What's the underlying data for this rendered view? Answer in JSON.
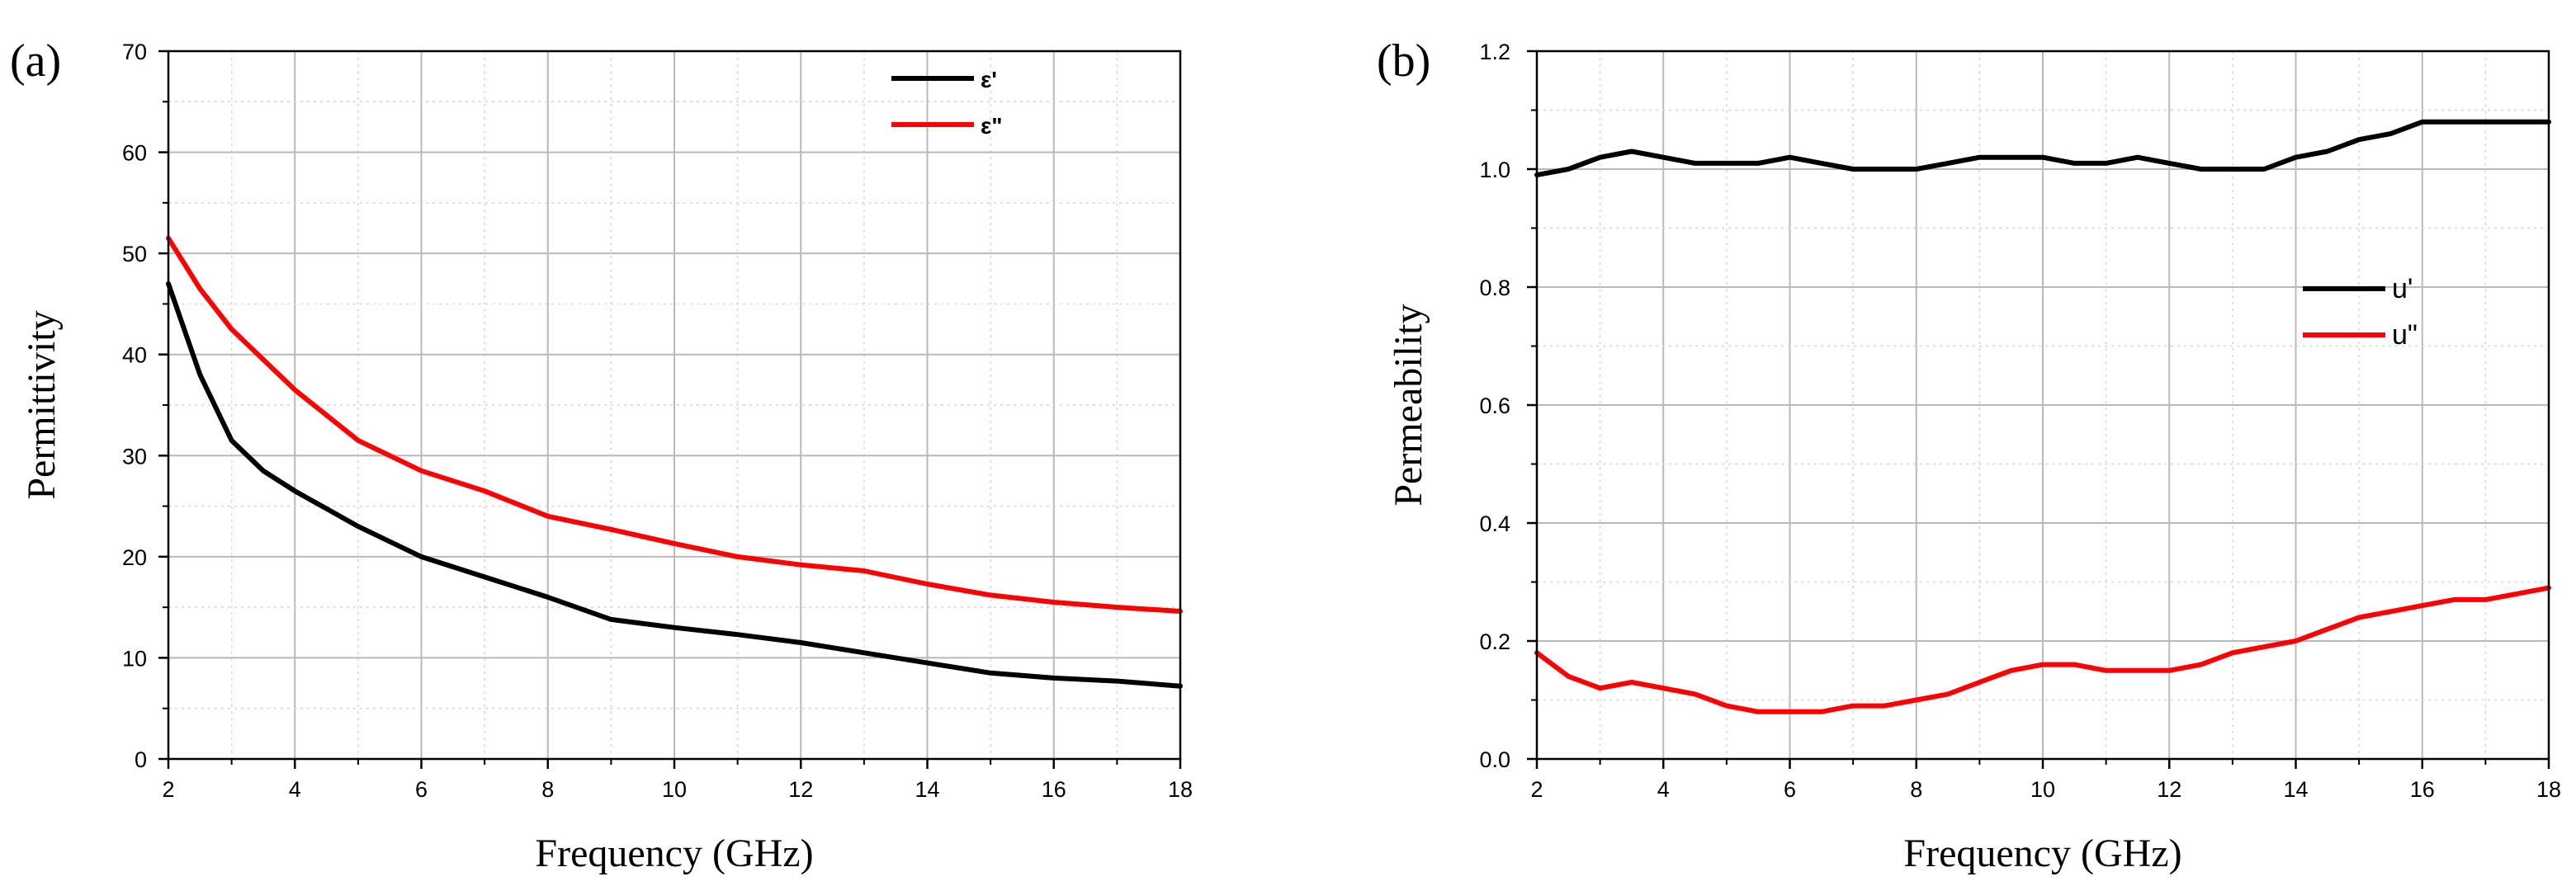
{
  "chart_data": [
    {
      "type": "line",
      "panel_label": "(a)",
      "xlabel": "Frequency (GHz)",
      "ylabel": "Permittivity",
      "xlim": [
        2,
        18
      ],
      "ylim": [
        0,
        70
      ],
      "xticks": [
        "2",
        "4",
        "6",
        "8",
        "10",
        "12",
        "14",
        "16",
        "18"
      ],
      "yticks": [
        "0",
        "10",
        "20",
        "30",
        "40",
        "50",
        "60",
        "70"
      ],
      "grid": true,
      "legend_position": "top-right",
      "series": [
        {
          "name": "ε'",
          "color": "#000000",
          "x": [
            2,
            2.5,
            3,
            3.5,
            4,
            5,
            6,
            7,
            8,
            9,
            10,
            11,
            12,
            13,
            14,
            15,
            16,
            17,
            18
          ],
          "y": [
            47,
            38,
            31.5,
            28.5,
            26.5,
            23,
            20,
            18,
            16,
            13.8,
            13,
            12.3,
            11.5,
            10.5,
            9.5,
            8.5,
            8,
            7.7,
            7.2
          ]
        },
        {
          "name": "ε\"",
          "color": "#ff0000",
          "x": [
            2,
            2.5,
            3,
            3.5,
            4,
            5,
            6,
            7,
            8,
            9,
            10,
            11,
            12,
            13,
            14,
            15,
            16,
            17,
            18
          ],
          "y": [
            51.5,
            46.5,
            42.5,
            39.5,
            36.5,
            31.5,
            28.5,
            26.5,
            24,
            22.7,
            21.3,
            20,
            19.2,
            18.6,
            17.3,
            16.2,
            15.5,
            15,
            14.6
          ]
        }
      ]
    },
    {
      "type": "line",
      "panel_label": "(b)",
      "xlabel": "Frequency (GHz)",
      "ylabel": "Permeability",
      "xlim": [
        2,
        18
      ],
      "ylim": [
        0,
        1.2
      ],
      "xticks": [
        "2",
        "4",
        "6",
        "8",
        "10",
        "12",
        "14",
        "16",
        "18"
      ],
      "yticks": [
        "0.0",
        "0.2",
        "0.4",
        "0.6",
        "0.8",
        "1.0",
        "1.2"
      ],
      "grid": true,
      "legend_position": "center-right",
      "series": [
        {
          "name": "u'",
          "color": "#000000",
          "x": [
            2,
            2.5,
            3,
            3.5,
            4,
            4.5,
            5,
            5.5,
            6,
            6.5,
            7,
            7.5,
            8,
            8.5,
            9,
            9.5,
            10,
            10.5,
            11,
            11.5,
            12,
            12.5,
            13,
            13.5,
            14,
            14.5,
            15,
            15.5,
            16,
            16.5,
            17,
            17.5,
            18
          ],
          "y": [
            0.99,
            1.0,
            1.02,
            1.03,
            1.02,
            1.01,
            1.01,
            1.01,
            1.02,
            1.01,
            1.0,
            1.0,
            1.0,
            1.01,
            1.02,
            1.02,
            1.02,
            1.01,
            1.01,
            1.02,
            1.01,
            1.0,
            1.0,
            1.0,
            1.02,
            1.03,
            1.05,
            1.06,
            1.08,
            1.08,
            1.08,
            1.08,
            1.08
          ]
        },
        {
          "name": "u\"",
          "color": "#ff0000",
          "x": [
            2,
            2.5,
            3,
            3.5,
            4,
            4.5,
            5,
            5.5,
            6,
            6.5,
            7,
            7.5,
            8,
            8.5,
            9,
            9.5,
            10,
            10.5,
            11,
            11.5,
            12,
            12.5,
            13,
            13.5,
            14,
            14.5,
            15,
            15.5,
            16,
            16.5,
            17,
            17.5,
            18
          ],
          "y": [
            0.18,
            0.14,
            0.12,
            0.13,
            0.12,
            0.11,
            0.09,
            0.08,
            0.08,
            0.08,
            0.09,
            0.09,
            0.1,
            0.11,
            0.13,
            0.15,
            0.16,
            0.16,
            0.15,
            0.15,
            0.15,
            0.16,
            0.18,
            0.19,
            0.2,
            0.22,
            0.24,
            0.25,
            0.26,
            0.27,
            0.27,
            0.28,
            0.29
          ]
        }
      ]
    }
  ]
}
